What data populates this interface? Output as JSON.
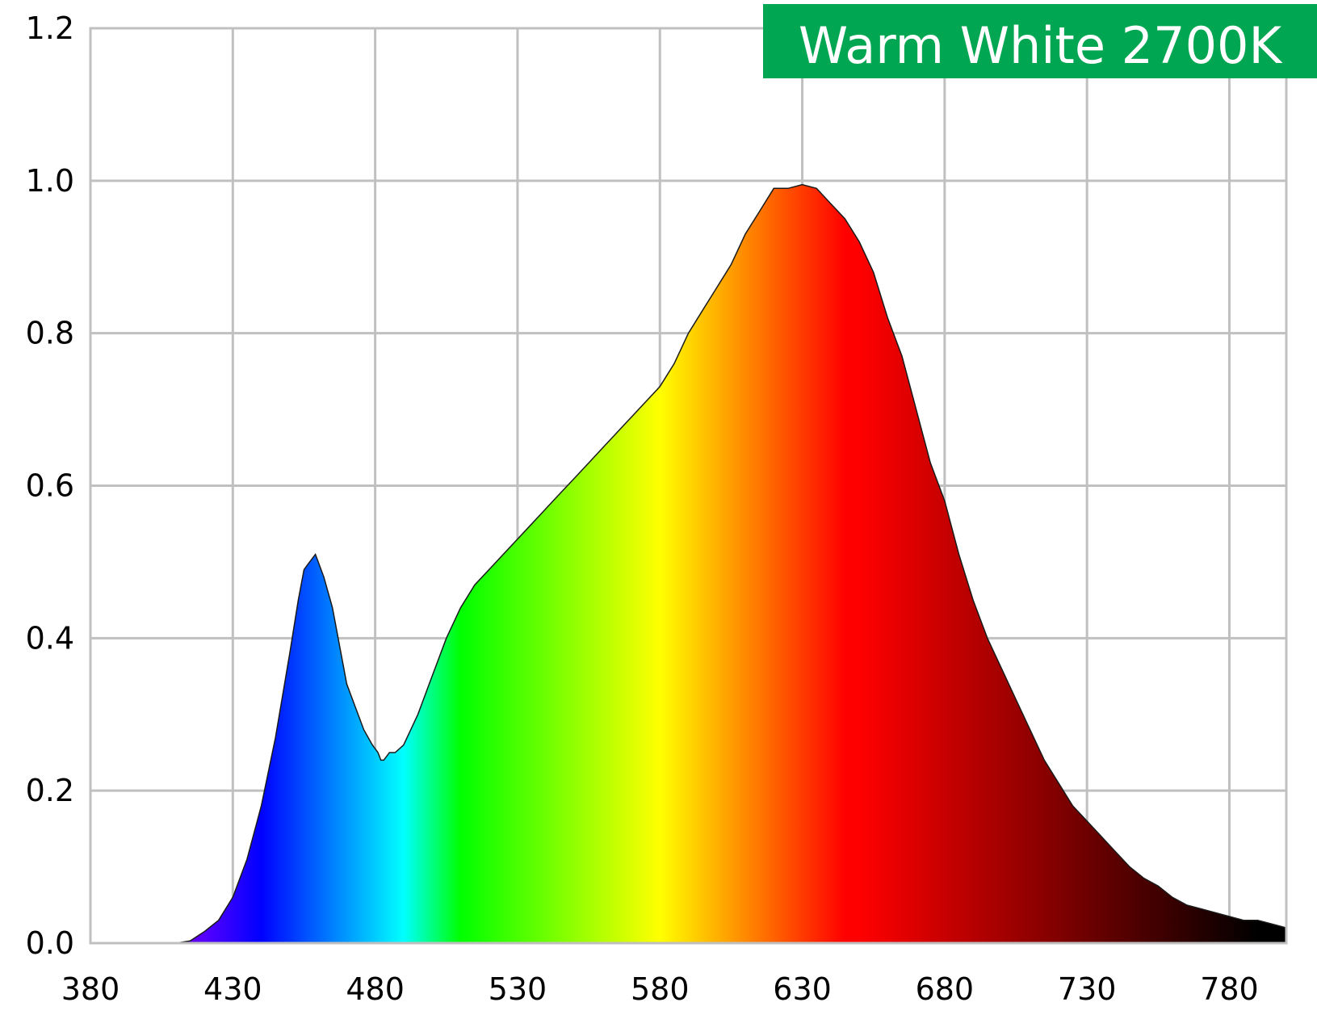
{
  "badge": {
    "text": "Warm White 2700K",
    "color": "#00a651"
  },
  "chart_data": {
    "type": "area",
    "title": "",
    "xlabel": "",
    "ylabel": "",
    "xlim": [
      380,
      800
    ],
    "ylim": [
      0,
      1.2
    ],
    "x_ticks": [
      380,
      430,
      480,
      530,
      580,
      630,
      680,
      730,
      780
    ],
    "x_tick_labels": [
      "380",
      "430",
      "480",
      "530",
      "580",
      "630",
      "680",
      "730",
      "780"
    ],
    "y_ticks": [
      0,
      0.2,
      0.4,
      0.6,
      0.8,
      1.0,
      1.2
    ],
    "y_tick_labels": [
      "0.0",
      "0.2",
      "0.4",
      "0.6",
      "0.8",
      "1.0",
      "1.2"
    ],
    "grid": true,
    "fill": "visible spectrum colors by wavelength",
    "series": [
      {
        "x": [
          380,
          400,
          410,
          415,
          420,
          425,
          430,
          435,
          440,
          445,
          450,
          453,
          455,
          457,
          459,
          460,
          462,
          465,
          468,
          470,
          473,
          476,
          479,
          481,
          482,
          483,
          485,
          487,
          490,
          495,
          500,
          505,
          510,
          515,
          520,
          525,
          530,
          535,
          540,
          545,
          550,
          555,
          560,
          565,
          570,
          575,
          580,
          585,
          590,
          595,
          600,
          605,
          610,
          615,
          620,
          625,
          630,
          635,
          640,
          645,
          650,
          655,
          660,
          665,
          670,
          675,
          680,
          685,
          690,
          695,
          700,
          705,
          710,
          715,
          720,
          725,
          730,
          735,
          740,
          745,
          750,
          755,
          760,
          765,
          770,
          775,
          780,
          785,
          790,
          795,
          800
        ],
        "y": [
          0.0,
          0.0,
          0.0,
          0.003,
          0.015,
          0.03,
          0.06,
          0.11,
          0.18,
          0.27,
          0.38,
          0.45,
          0.49,
          0.5,
          0.51,
          0.5,
          0.48,
          0.44,
          0.38,
          0.34,
          0.31,
          0.28,
          0.26,
          0.25,
          0.24,
          0.24,
          0.25,
          0.25,
          0.26,
          0.3,
          0.35,
          0.4,
          0.44,
          0.47,
          0.49,
          0.51,
          0.53,
          0.55,
          0.57,
          0.59,
          0.61,
          0.63,
          0.65,
          0.67,
          0.69,
          0.71,
          0.73,
          0.76,
          0.8,
          0.83,
          0.86,
          0.89,
          0.93,
          0.96,
          0.99,
          0.99,
          0.995,
          0.99,
          0.97,
          0.95,
          0.92,
          0.88,
          0.82,
          0.77,
          0.7,
          0.63,
          0.58,
          0.51,
          0.45,
          0.4,
          0.36,
          0.32,
          0.28,
          0.24,
          0.21,
          0.18,
          0.16,
          0.14,
          0.12,
          0.1,
          0.085,
          0.075,
          0.06,
          0.05,
          0.045,
          0.04,
          0.035,
          0.03,
          0.03,
          0.025,
          0.02
        ]
      }
    ]
  }
}
